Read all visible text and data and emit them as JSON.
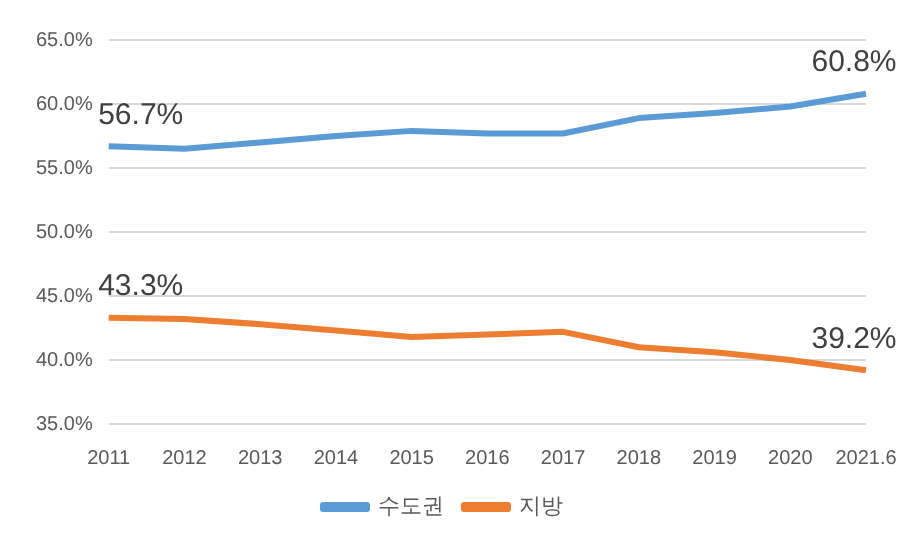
{
  "chart_data": {
    "type": "line",
    "categories": [
      "2011",
      "2012",
      "2013",
      "2014",
      "2015",
      "2016",
      "2017",
      "2018",
      "2019",
      "2020",
      "2021.6"
    ],
    "series": [
      {
        "name": "수도권",
        "color": "#5b9bd5",
        "values": [
          56.7,
          56.5,
          57.0,
          57.5,
          57.9,
          57.7,
          57.7,
          58.9,
          59.3,
          59.8,
          60.8
        ],
        "value_labels": [
          "56.7%",
          null,
          null,
          null,
          null,
          null,
          null,
          null,
          null,
          null,
          "60.8%"
        ]
      },
      {
        "name": "지방",
        "color": "#ed7d31",
        "values": [
          43.3,
          43.2,
          42.8,
          42.3,
          41.8,
          42.0,
          42.2,
          41.0,
          40.6,
          40.0,
          39.2
        ],
        "value_labels": [
          "43.3%",
          null,
          null,
          null,
          null,
          null,
          null,
          null,
          null,
          null,
          "39.2%"
        ]
      }
    ],
    "ylim": [
      35,
      65
    ],
    "yticks": [
      {
        "value": 35,
        "label": "35.0%"
      },
      {
        "value": 40,
        "label": "40.0%"
      },
      {
        "value": 45,
        "label": "45.0%"
      },
      {
        "value": 50,
        "label": "50.0%"
      },
      {
        "value": 55,
        "label": "55.0%"
      },
      {
        "value": 60,
        "label": "60.0%"
      },
      {
        "value": 65,
        "label": "65.0%"
      }
    ],
    "grid": "y",
    "legend": "bottom",
    "marker": "none",
    "line_style": "solid"
  }
}
